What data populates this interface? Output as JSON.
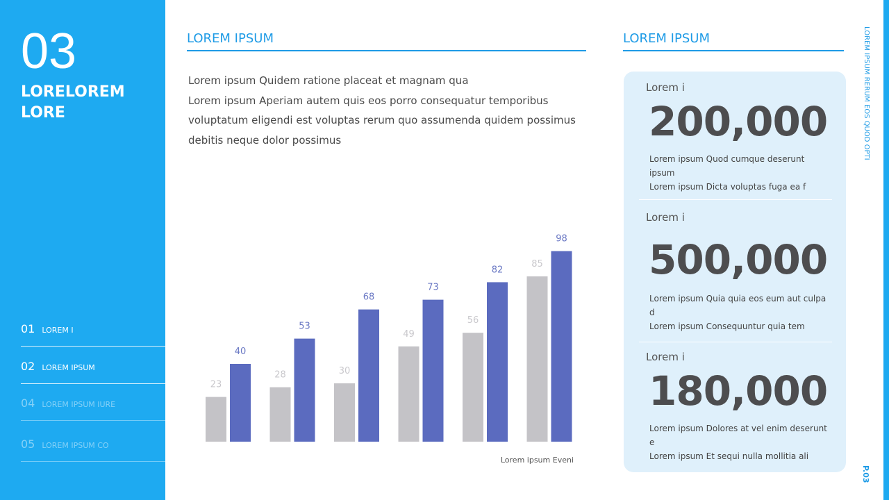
{
  "sidebar": {
    "number": "03",
    "title_lines": [
      "LORELOREM",
      "LORE"
    ],
    "nav": [
      {
        "num": "01",
        "label": "LOREM I"
      },
      {
        "num": "02",
        "label": "LOREM IPSUM"
      },
      {
        "num": "04",
        "label": "LOREM IPSUM IURE"
      },
      {
        "num": "05",
        "label": "LOREM IPSUM CO"
      }
    ]
  },
  "main": {
    "heading": "LOREM IPSUM",
    "paragraph_lines": [
      "Lorem ipsum Quidem ratione placeat et magnam qua",
      "Lorem ipsum Aperiam autem quis eos porro consequatur temporibus",
      "voluptatum eligendi est voluptas rerum quo assumenda quidem possimus",
      "debitis neque dolor possimus"
    ]
  },
  "chart_data": {
    "type": "bar",
    "categories": [
      null,
      null,
      null,
      null,
      null,
      null
    ],
    "series": [
      {
        "color": "#c4c3c7",
        "values": [
          23,
          28,
          30,
          49,
          56,
          85
        ]
      },
      {
        "color": "#5b6bbf",
        "values": [
          40,
          53,
          68,
          73,
          82,
          98
        ]
      }
    ],
    "ylim": [
      0,
      100
    ],
    "caption": "Lorem ipsum Eveni"
  },
  "side": {
    "heading": "LOREM IPSUM",
    "stats": [
      {
        "label": "Lorem i",
        "value": "200,000",
        "lines": [
          "Lorem ipsum Quod cumque deserunt ipsum",
          "Lorem ipsum Dicta voluptas fuga ea f"
        ]
      },
      {
        "label": "Lorem i",
        "value": "500,000",
        "lines": [
          "Lorem ipsum Quia quia eos eum aut culpa d",
          "Lorem ipsum Consequuntur quia tem"
        ]
      },
      {
        "label": "Lorem i",
        "value": "180,000",
        "lines": [
          "Lorem ipsum Dolores at vel enim deserunt e",
          "Lorem ipsum Et sequi nulla mollitia ali"
        ]
      }
    ]
  },
  "vertical_text": "LOREM IPSUM RERUM EOS QUOD OPTI",
  "page": "P.03"
}
